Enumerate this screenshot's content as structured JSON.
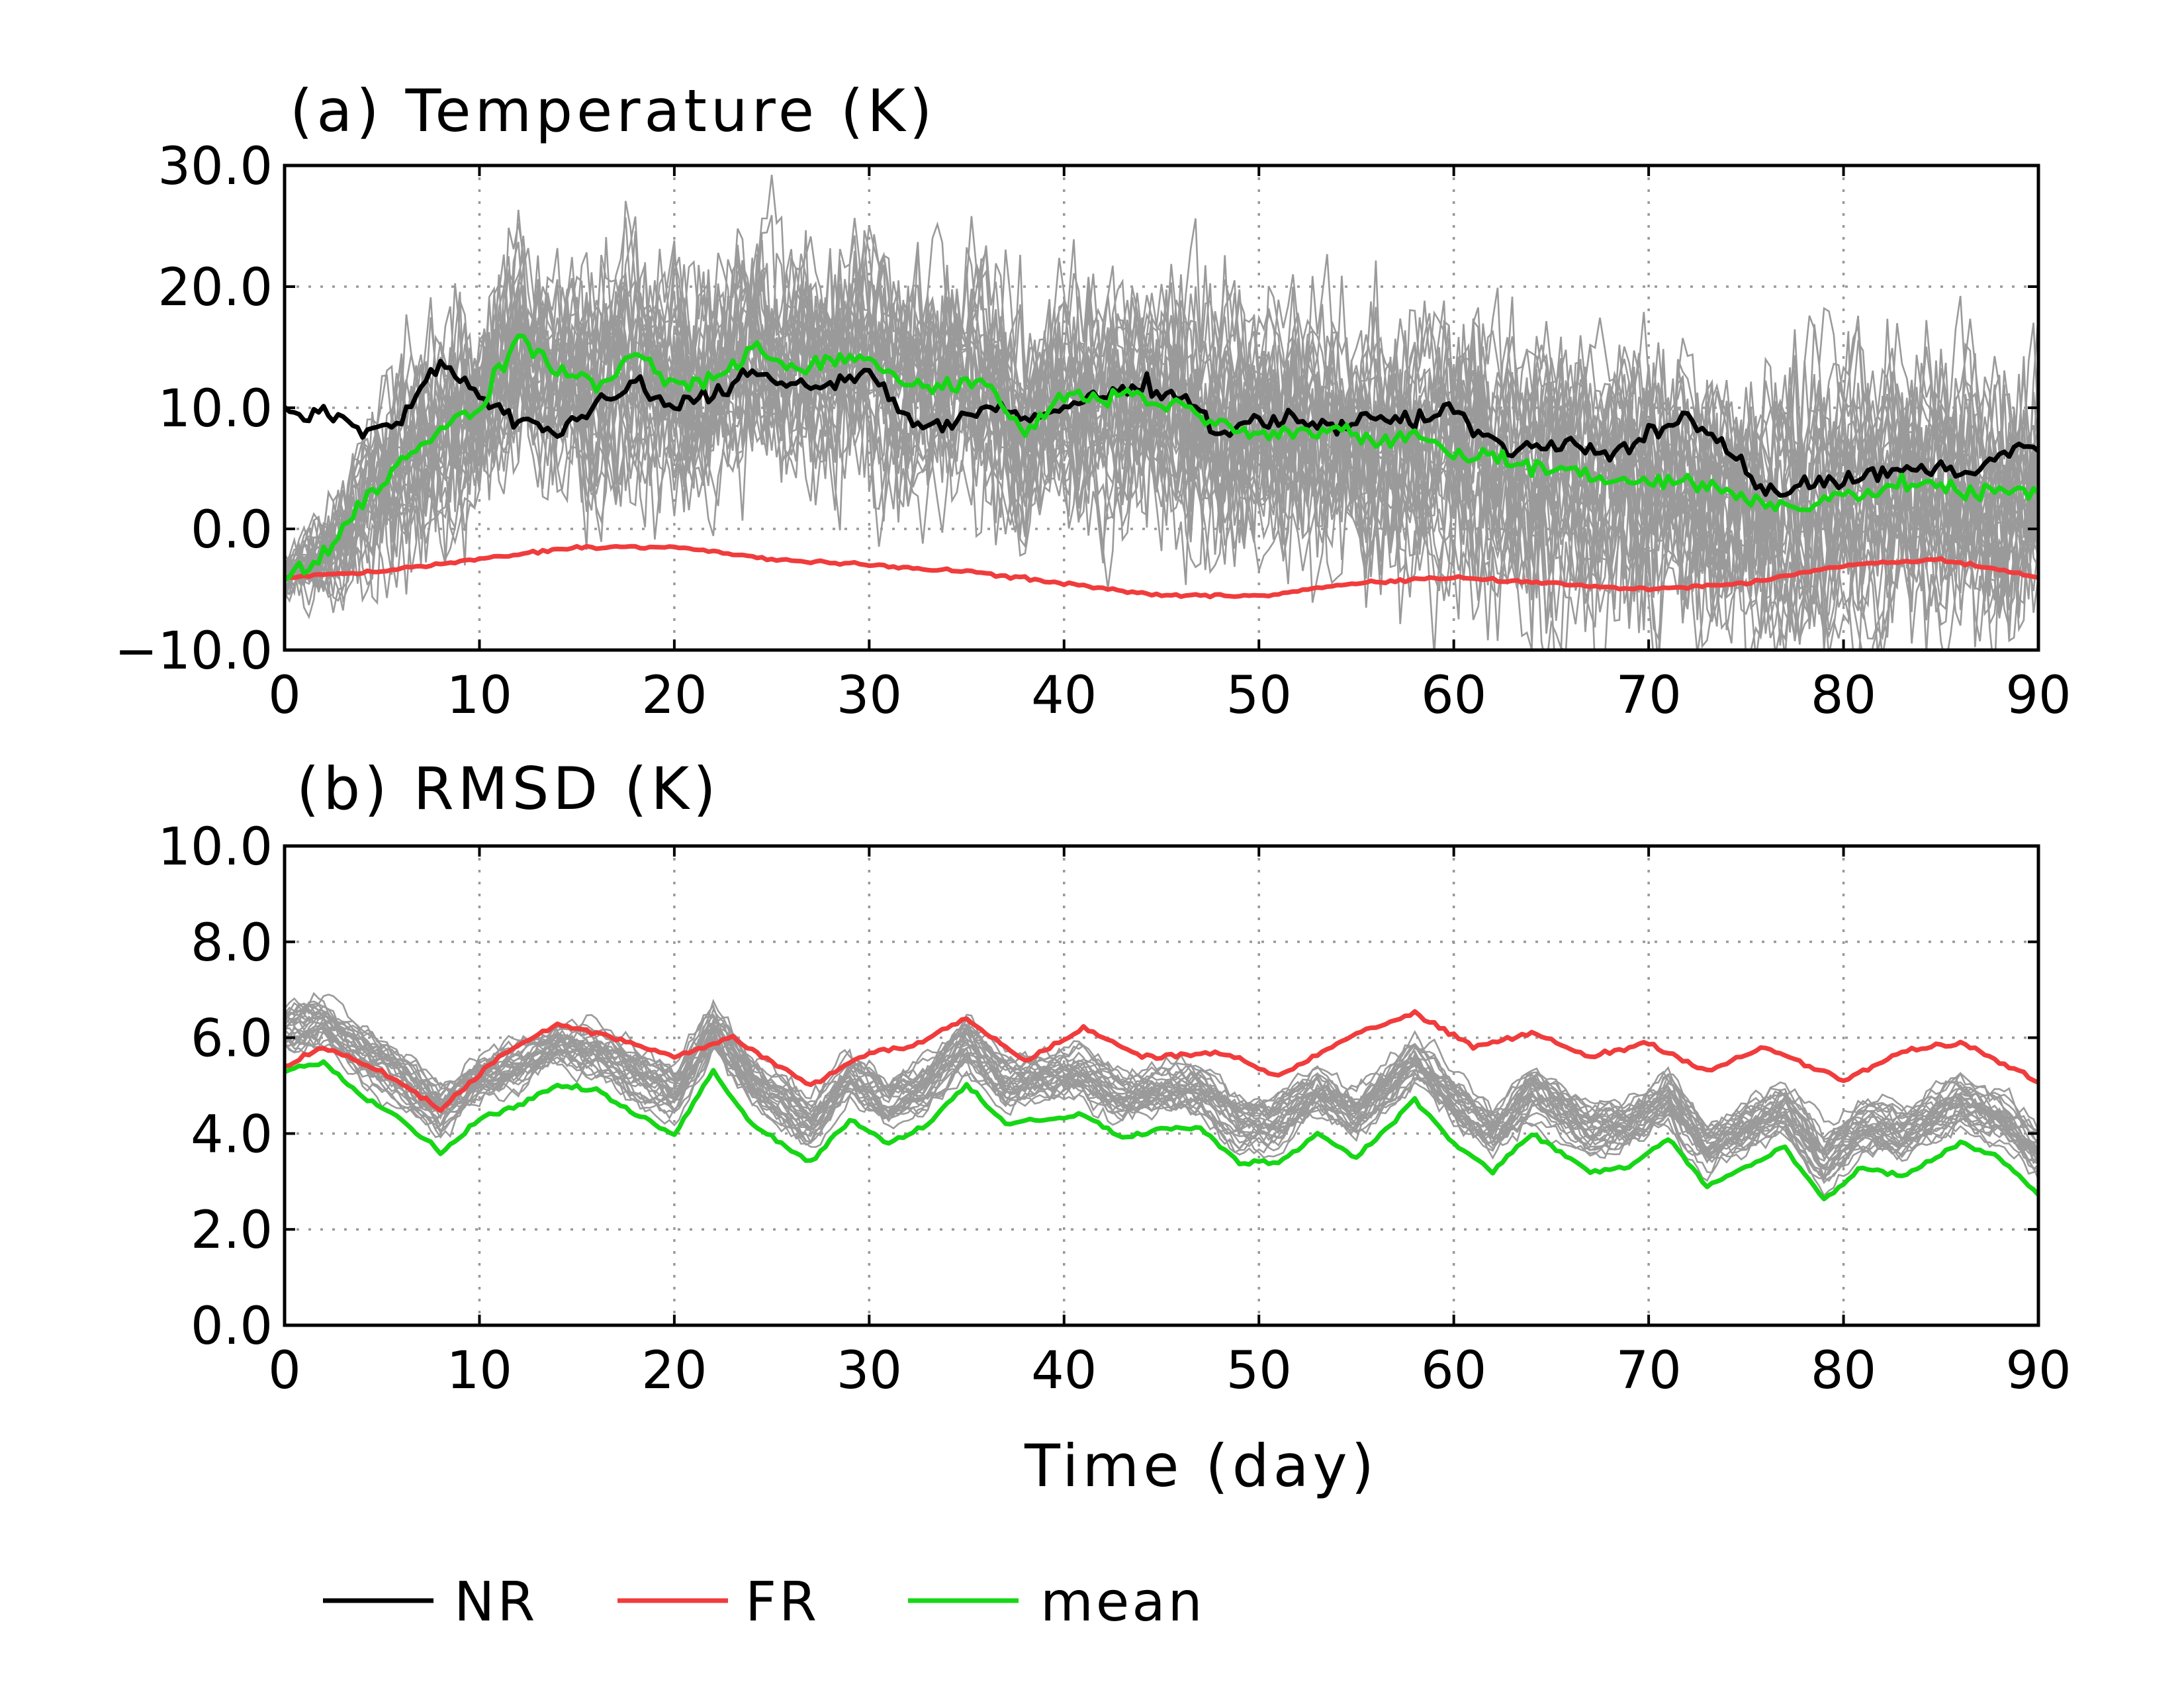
{
  "chart_data": [
    {
      "type": "line",
      "title": "(a) Temperature (K)",
      "xlabel": "",
      "ylabel": "",
      "xlim": [
        0,
        90
      ],
      "ylim": [
        -10,
        30
      ],
      "xticks": [
        "0",
        "10",
        "20",
        "30",
        "40",
        "50",
        "60",
        "70",
        "80",
        "90"
      ],
      "yticks": [
        "30.0",
        "20.0",
        "10.0",
        "0.0",
        "−10.0"
      ],
      "grid": true,
      "ensemble_members": 30,
      "ensemble_color": "#9a9a9a",
      "series": [
        {
          "name": "NR",
          "color": "#000000",
          "x": [
            0,
            2,
            4,
            6,
            8,
            10,
            12,
            14,
            16,
            18,
            20,
            22,
            24,
            26,
            28,
            30,
            32,
            34,
            36,
            38,
            40,
            42,
            44,
            46,
            48,
            50,
            52,
            54,
            56,
            58,
            60,
            62,
            64,
            66,
            68,
            70,
            72,
            74,
            76,
            78,
            80,
            82,
            84,
            86,
            88,
            90
          ],
          "y": [
            9.5,
            9.5,
            8,
            9,
            14,
            11,
            9,
            8,
            10,
            12,
            10,
            11,
            13,
            12,
            12,
            13,
            9,
            8.5,
            10,
            9,
            10,
            11,
            12,
            11,
            8,
            9,
            9,
            8.5,
            9,
            9,
            10,
            7,
            6.5,
            7,
            6,
            8,
            9,
            7,
            3,
            3.5,
            4,
            4.5,
            5,
            4.5,
            6,
            7
          ]
        },
        {
          "name": "FR",
          "color": "#f03c3c",
          "x": [
            0,
            5,
            10,
            15,
            20,
            25,
            30,
            35,
            40,
            45,
            50,
            55,
            60,
            65,
            70,
            75,
            80,
            85,
            90
          ],
          "y": [
            -4,
            -3.5,
            -2.5,
            -1.5,
            -1.5,
            -2.5,
            -3,
            -3.5,
            -4.5,
            -5.5,
            -5.5,
            -4.5,
            -4,
            -4.5,
            -5,
            -4.5,
            -3,
            -2.5,
            -4
          ]
        },
        {
          "name": "mean",
          "color": "#16d616",
          "x": [
            0,
            2,
            4,
            6,
            8,
            10,
            12,
            14,
            16,
            18,
            20,
            22,
            24,
            26,
            28,
            30,
            32,
            34,
            36,
            38,
            40,
            42,
            44,
            46,
            48,
            50,
            52,
            54,
            56,
            58,
            60,
            62,
            64,
            66,
            68,
            70,
            72,
            74,
            76,
            78,
            80,
            82,
            84,
            86,
            88,
            90
          ],
          "y": [
            -4,
            -2,
            2,
            6,
            8,
            10,
            16,
            13,
            12,
            14,
            12,
            12,
            15,
            13,
            14,
            14,
            12,
            12,
            12,
            8,
            11,
            11,
            11,
            10,
            9,
            8,
            8,
            8,
            7,
            8,
            6,
            6,
            5,
            5,
            4,
            4,
            4,
            3,
            2,
            2,
            3,
            3,
            4,
            3,
            3,
            3
          ]
        }
      ]
    },
    {
      "type": "line",
      "title": "(b) RMSD (K)",
      "xlabel": "Time (day)",
      "ylabel": "",
      "xlim": [
        0,
        90
      ],
      "ylim": [
        0,
        10
      ],
      "xticks": [
        "0",
        "10",
        "20",
        "30",
        "40",
        "50",
        "60",
        "70",
        "80",
        "90"
      ],
      "yticks": [
        "10.0",
        "8.0",
        "6.0",
        "4.0",
        "2.0",
        "0.0"
      ],
      "grid": true,
      "ensemble_members": 30,
      "ensemble_color": "#9a9a9a",
      "series": [
        {
          "name": "FR",
          "color": "#f03c3c",
          "x": [
            0,
            2,
            5,
            8,
            11,
            14,
            17,
            20,
            23,
            27,
            30,
            32,
            35,
            38,
            41,
            44,
            48,
            51,
            55,
            58,
            61,
            64,
            67,
            70,
            73,
            76,
            80,
            83,
            86,
            90
          ],
          "y": [
            5.4,
            5.8,
            5.3,
            4.5,
            5.6,
            6.3,
            6.0,
            5.6,
            6.0,
            5.0,
            5.7,
            5.8,
            6.4,
            5.5,
            6.2,
            5.6,
            5.7,
            5.2,
            6.1,
            6.5,
            5.8,
            6.1,
            5.6,
            5.9,
            5.3,
            5.8,
            5.1,
            5.7,
            5.9,
            5.1
          ]
        },
        {
          "name": "mean",
          "color": "#16d616",
          "x": [
            0,
            2,
            4,
            6,
            8,
            10,
            12,
            14,
            16,
            18,
            20,
            22,
            24,
            27,
            29,
            31,
            33,
            35,
            37,
            39,
            41,
            43,
            45,
            47,
            49,
            51,
            53,
            55,
            58,
            60,
            62,
            64,
            67,
            69,
            71,
            73,
            75,
            77,
            79,
            81,
            83,
            86,
            88,
            90
          ],
          "y": [
            5.3,
            5.5,
            4.8,
            4.3,
            3.6,
            4.3,
            4.6,
            5.0,
            4.9,
            4.4,
            4.0,
            5.3,
            4.2,
            3.4,
            4.3,
            3.8,
            4.2,
            5.0,
            4.2,
            4.3,
            4.4,
            3.9,
            4.1,
            4.1,
            3.4,
            3.4,
            4.0,
            3.5,
            4.7,
            3.8,
            3.2,
            4.0,
            3.2,
            3.3,
            3.9,
            2.9,
            3.3,
            3.7,
            2.6,
            3.3,
            3.1,
            3.8,
            3.5,
            2.7
          ]
        }
      ]
    }
  ],
  "legend": {
    "placement": "bottom",
    "entries": [
      {
        "label": "NR",
        "color": "#000000"
      },
      {
        "label": "FR",
        "color": "#f03c3c"
      },
      {
        "label": "mean",
        "color": "#16d616"
      }
    ]
  }
}
